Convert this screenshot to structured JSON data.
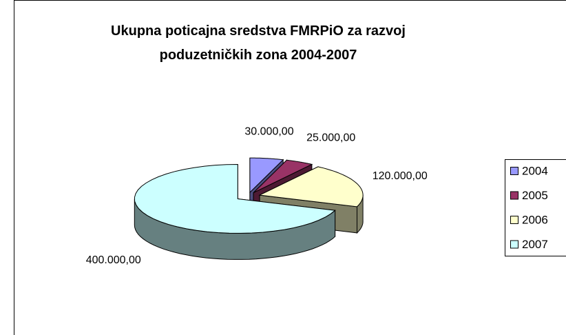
{
  "chart_data": {
    "type": "pie",
    "title": "Ukupna poticajna sredstva FMRPiO za razvoj poduzetničkih zona 2004-2007",
    "categories": [
      "2004",
      "2005",
      "2006",
      "2007"
    ],
    "values": [
      30000,
      25000,
      120000,
      400000
    ],
    "value_labels": [
      "30.000,00",
      "25.000,00",
      "120.000,00",
      "400.000,00"
    ],
    "colors": [
      "#9999ff",
      "#993366",
      "#ffffcc",
      "#ccffff"
    ],
    "legend": "right"
  }
}
